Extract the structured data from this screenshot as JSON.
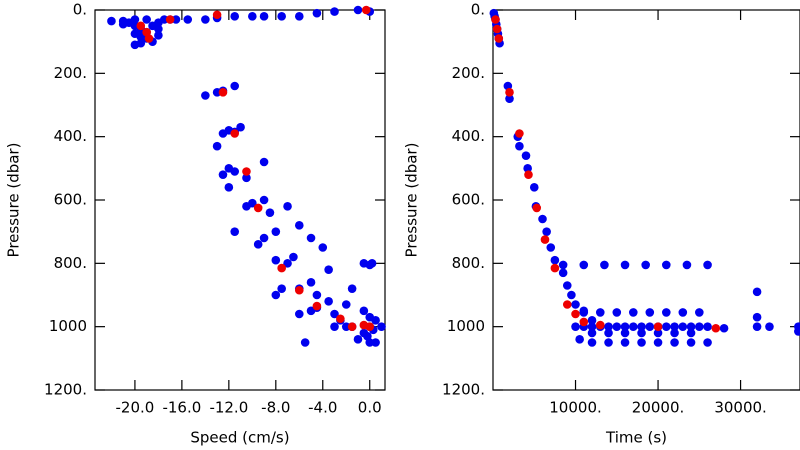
{
  "chart_data": [
    {
      "type": "scatter",
      "x_label": "Speed (cm/s)",
      "y_label": "Pressure (dbar)",
      "xlim": [
        -23.4,
        1.3
      ],
      "ylim": [
        1200,
        0
      ],
      "invert_y": true,
      "xticks": [
        {
          "value": -20,
          "label": "-20.0"
        },
        {
          "value": -16,
          "label": "-16.0"
        },
        {
          "value": -12,
          "label": "-12.0"
        },
        {
          "value": -8,
          "label": "-8.0"
        },
        {
          "value": -4,
          "label": "-4.0"
        },
        {
          "value": 0,
          "label": "0.0"
        }
      ],
      "yticks": [
        {
          "value": 0,
          "label": "0."
        },
        {
          "value": 200,
          "label": "200."
        },
        {
          "value": 400,
          "label": "400."
        },
        {
          "value": 600,
          "label": "600."
        },
        {
          "value": 800,
          "label": "800."
        },
        1000,
        {
          "value": 1200,
          "label": "1200."
        }
      ],
      "series": [
        {
          "color": "#0000ee",
          "x": [
            -22,
            -21,
            -20.5,
            -20,
            -19.5,
            -19,
            -19,
            -18.5,
            -20,
            -19.5,
            -18,
            -18,
            -18,
            -19,
            -20,
            -21,
            -20,
            -19.5,
            -18.5,
            -17.5,
            -17,
            -16.5,
            -15.5,
            -14,
            -13,
            -11.5,
            -10,
            -9,
            -7.5,
            -6,
            -4.5,
            -3,
            -1,
            0,
            -14,
            -13,
            -12.5,
            -11.5,
            -12.5,
            -12,
            -11.5,
            -13,
            -11,
            -12.5,
            -12,
            -11.5,
            -12,
            -10.5,
            -9,
            -10.5,
            -10,
            -9,
            -8.5,
            -11.5,
            -9.5,
            -9,
            -8,
            -7,
            -6,
            -8,
            -7,
            -6.5,
            -5,
            -4,
            -3.5,
            -5,
            -4.5,
            -6,
            -7.5,
            -8,
            -6,
            -5,
            -4.5,
            -3.5,
            -3,
            -2.5,
            -2,
            -5.5,
            -3,
            -2,
            -1.5,
            -0.5,
            0,
            0.2,
            -0.5,
            0,
            0,
            0.3,
            -0.2,
            0,
            0.5,
            1,
            -1,
            -0.5,
            0.5,
            -1.5
          ],
          "values": [
            35,
            35,
            40,
            50,
            60,
            70,
            90,
            100,
            110,
            105,
            80,
            60,
            40,
            30,
            30,
            45,
            75,
            85,
            50,
            30,
            30,
            30,
            30,
            30,
            25,
            20,
            20,
            20,
            20,
            20,
            10,
            5,
            0,
            5,
            270,
            260,
            255,
            240,
            390,
            380,
            385,
            430,
            370,
            520,
            500,
            510,
            560,
            530,
            480,
            620,
            610,
            600,
            640,
            700,
            740,
            720,
            700,
            620,
            680,
            790,
            800,
            780,
            720,
            750,
            820,
            860,
            900,
            880,
            880,
            900,
            960,
            950,
            940,
            920,
            960,
            980,
            1000,
            1050,
            1000,
            930,
            880,
            800,
            805,
            800,
            950,
            970,
            1000,
            1010,
            1030,
            1050,
            1050,
            1000,
            1040,
            1020,
            980,
            1000
          ]
        },
        {
          "color": "#ee0000",
          "x": [
            -19.5,
            -19,
            -18.8,
            -17,
            -13,
            -12.5,
            -11.5,
            -10.5,
            -9.5,
            -7.5,
            -6,
            -4.5,
            -2.5,
            -1.5,
            -0.5,
            0,
            -0.3
          ],
          "values": [
            50,
            70,
            90,
            30,
            15,
            260,
            390,
            510,
            625,
            815,
            885,
            935,
            975,
            1000,
            995,
            1000,
            0
          ]
        }
      ]
    },
    {
      "type": "scatter",
      "x_label": "Time (s)",
      "y_label": "Pressure (dbar)",
      "xlim": [
        0,
        37200
      ],
      "ylim": [
        1200,
        0
      ],
      "invert_y": true,
      "xticks": [
        {
          "value": 10000,
          "label": "10000."
        },
        {
          "value": 20000,
          "label": "20000."
        },
        {
          "value": 30000,
          "label": "30000."
        }
      ],
      "yticks": [
        {
          "value": 0,
          "label": "0."
        },
        {
          "value": 200,
          "label": "200."
        },
        {
          "value": 400,
          "label": "400."
        },
        {
          "value": 600,
          "label": "600."
        },
        {
          "value": 800,
          "label": "800."
        },
        1000,
        {
          "value": 1200,
          "label": "1200."
        }
      ],
      "series": [
        {
          "color": "#0000ee",
          "x": [
            100,
            200,
            300,
            400,
            500,
            600,
            700,
            800,
            1800,
            2000,
            3000,
            3200,
            4000,
            4200,
            5000,
            5200,
            6000,
            6500,
            7000,
            7500,
            8500,
            9000,
            9500,
            10000,
            11000,
            12000,
            10500,
            12000,
            14000,
            16000,
            18000,
            20000,
            22000,
            24000,
            26000,
            11000,
            13000,
            15000,
            17000,
            19000,
            21000,
            23000,
            25000,
            8500,
            11000,
            13500,
            16000,
            18500,
            21000,
            23500,
            26000,
            10000,
            11000,
            12000,
            13000,
            14000,
            15000,
            16000,
            17000,
            18000,
            19000,
            20000,
            21000,
            22000,
            23000,
            24000,
            25000,
            26000,
            12000,
            14000,
            16000,
            18000,
            20000,
            22000,
            24000,
            28000,
            32000,
            32000,
            32000,
            33500,
            37000,
            37000
          ],
          "values": [
            10,
            20,
            30,
            45,
            60,
            75,
            90,
            105,
            240,
            280,
            400,
            430,
            460,
            500,
            560,
            620,
            660,
            700,
            750,
            790,
            830,
            870,
            900,
            930,
            950,
            980,
            1040,
            1050,
            1050,
            1050,
            1050,
            1050,
            1050,
            1050,
            1050,
            955,
            955,
            955,
            955,
            955,
            955,
            955,
            955,
            805,
            805,
            805,
            805,
            805,
            805,
            805,
            805,
            1000,
            1000,
            1000,
            1000,
            1000,
            1000,
            1000,
            1000,
            1000,
            1000,
            1000,
            1000,
            1000,
            1000,
            1000,
            1000,
            1000,
            1020,
            1020,
            1020,
            1020,
            1020,
            1020,
            1020,
            1005,
            890,
            970,
            1000,
            1000,
            1000,
            1015
          ]
        },
        {
          "color": "#ee0000",
          "x": [
            300,
            500,
            700,
            2000,
            3200,
            4300,
            5300,
            6300,
            7500,
            9000,
            10000,
            11000,
            13000,
            20000,
            27000
          ],
          "values": [
            30,
            60,
            90,
            260,
            390,
            520,
            625,
            725,
            815,
            930,
            960,
            985,
            995,
            1000,
            1005
          ]
        }
      ]
    }
  ]
}
